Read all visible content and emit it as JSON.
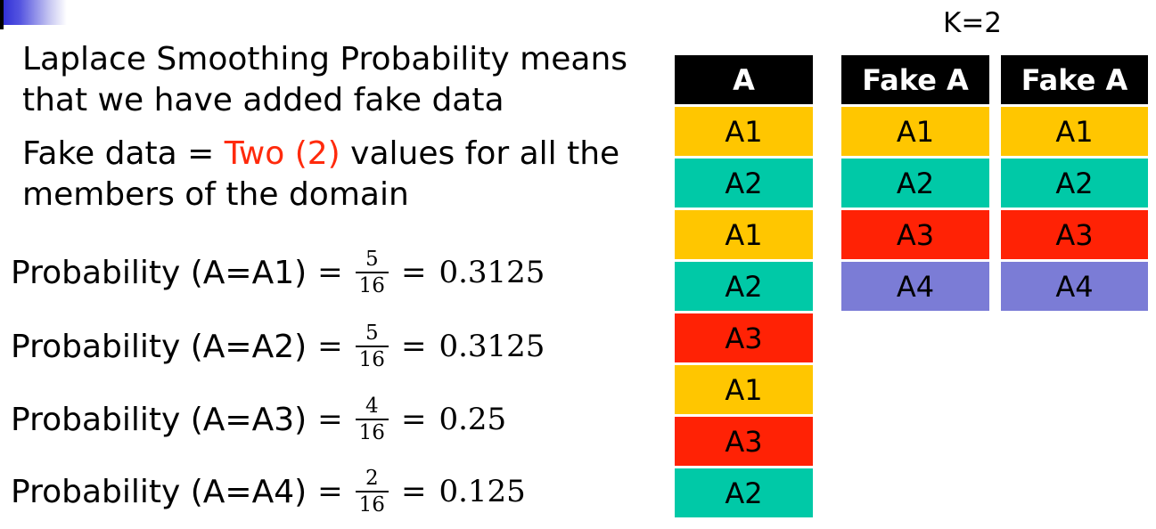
{
  "k_label": "K=2",
  "intro": {
    "line1": "Laplace Smoothing Probability means",
    "line2": "that we have added fake data",
    "fake_prefix": "Fake data = ",
    "fake_highlight": "Two (2)",
    "fake_suffix": " values for all the",
    "line4": "members of the domain"
  },
  "probabilities": [
    {
      "label": "Probability (A=A1)",
      "numerator": "5",
      "denominator": "16",
      "result": "0.3125"
    },
    {
      "label": "Probability (A=A2)",
      "numerator": "5",
      "denominator": "16",
      "result": "0.3125"
    },
    {
      "label": "Probability (A=A3)",
      "numerator": "4",
      "denominator": "16",
      "result": "0.25"
    },
    {
      "label": "Probability (A=A4)",
      "numerator": "2",
      "denominator": "16",
      "result": "0.125"
    }
  ],
  "colors": {
    "A1": "#ffc600",
    "A2": "#00c9a7",
    "A3": "#ff2205",
    "A4": "#7b7cd6",
    "highlight": "#ff2a0c"
  },
  "table_a": {
    "header": "A",
    "values": [
      "A1",
      "A2",
      "A1",
      "A2",
      "A3",
      "A1",
      "A3",
      "A2"
    ]
  },
  "fake_tables": [
    {
      "header": "Fake A",
      "values": [
        "A1",
        "A2",
        "A3",
        "A4"
      ]
    },
    {
      "header": "Fake A",
      "values": [
        "A1",
        "A2",
        "A3",
        "A4"
      ]
    }
  ]
}
